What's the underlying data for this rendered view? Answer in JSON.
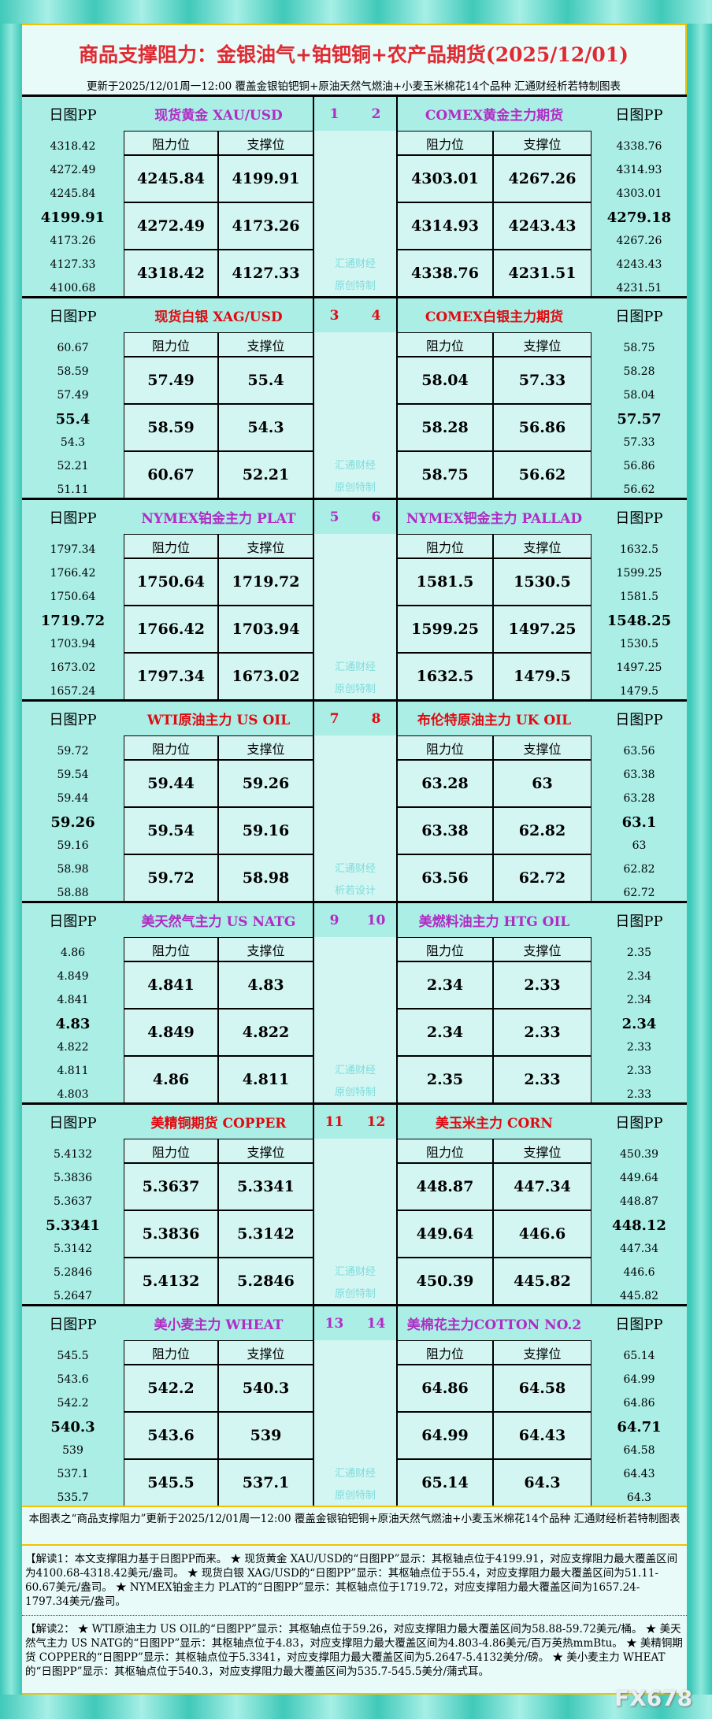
{
  "title": "商品支撑阻力：金银油气+铂钯铜+农产品期货(2025/12/01)",
  "subtitle": "更新于2025/12/01周一12:00  覆盖金银铂钯铜+原油天然气燃油+小麦玉米棉花14个品种  汇通财经析若特制图表",
  "labels": {
    "pp": "日图PP",
    "resistance": "阻力位",
    "support": "支撑位"
  },
  "colors": {
    "purple": "#b02cc4",
    "red": "#e00a10",
    "title": "#e02a32",
    "watermark": "#7edcdc"
  },
  "sections": [
    {
      "numColor": "purple",
      "watermark": [
        "汇通财经",
        "原创特制"
      ],
      "left": {
        "num": "1",
        "name": "现货黄金 XAU/USD",
        "color": "purple",
        "pp": [
          "4318.42",
          "4272.49",
          "4245.84",
          "4199.91",
          "4173.26",
          "4127.33",
          "4100.68"
        ],
        "rows": [
          [
            "4245.84",
            "4199.91"
          ],
          [
            "4272.49",
            "4173.26"
          ],
          [
            "4318.42",
            "4127.33"
          ]
        ]
      },
      "right": {
        "num": "2",
        "name": "COMEX黄金主力期货",
        "color": "purple",
        "pp": [
          "4338.76",
          "4314.93",
          "4303.01",
          "4279.18",
          "4267.26",
          "4243.43",
          "4231.51"
        ],
        "rows": [
          [
            "4303.01",
            "4267.26"
          ],
          [
            "4314.93",
            "4243.43"
          ],
          [
            "4338.76",
            "4231.51"
          ]
        ]
      }
    },
    {
      "numColor": "red",
      "watermark": [
        "汇通财经",
        "原创特制"
      ],
      "left": {
        "num": "3",
        "name": "现货白银 XAG/USD",
        "color": "red",
        "pp": [
          "60.67",
          "58.59",
          "57.49",
          "55.4",
          "54.3",
          "52.21",
          "51.11"
        ],
        "rows": [
          [
            "57.49",
            "55.4"
          ],
          [
            "58.59",
            "54.3"
          ],
          [
            "60.67",
            "52.21"
          ]
        ]
      },
      "right": {
        "num": "4",
        "name": "COMEX白银主力期货",
        "color": "red",
        "pp": [
          "58.75",
          "58.28",
          "58.04",
          "57.57",
          "57.33",
          "56.86",
          "56.62"
        ],
        "rows": [
          [
            "58.04",
            "57.33"
          ],
          [
            "58.28",
            "56.86"
          ],
          [
            "58.75",
            "56.62"
          ]
        ]
      }
    },
    {
      "numColor": "purple",
      "watermark": [
        "汇通财经",
        "原创特制"
      ],
      "left": {
        "num": "5",
        "name": "NYMEX铂金主力 PLAT",
        "color": "purple",
        "pp": [
          "1797.34",
          "1766.42",
          "1750.64",
          "1719.72",
          "1703.94",
          "1673.02",
          "1657.24"
        ],
        "rows": [
          [
            "1750.64",
            "1719.72"
          ],
          [
            "1766.42",
            "1703.94"
          ],
          [
            "1797.34",
            "1673.02"
          ]
        ]
      },
      "right": {
        "num": "6",
        "name": "NYMEX钯金主力 PALLAD",
        "color": "purple",
        "pp": [
          "1632.5",
          "1599.25",
          "1581.5",
          "1548.25",
          "1530.5",
          "1497.25",
          "1479.5"
        ],
        "rows": [
          [
            "1581.5",
            "1530.5"
          ],
          [
            "1599.25",
            "1497.25"
          ],
          [
            "1632.5",
            "1479.5"
          ]
        ]
      }
    },
    {
      "numColor": "red",
      "watermark": [
        "汇通财经",
        "析若设计"
      ],
      "left": {
        "num": "7",
        "name": "WTI原油主力 US OIL",
        "color": "red",
        "pp": [
          "59.72",
          "59.54",
          "59.44",
          "59.26",
          "59.16",
          "58.98",
          "58.88"
        ],
        "rows": [
          [
            "59.44",
            "59.26"
          ],
          [
            "59.54",
            "59.16"
          ],
          [
            "59.72",
            "58.98"
          ]
        ]
      },
      "right": {
        "num": "8",
        "name": "布伦特原油主力 UK OIL",
        "color": "red",
        "pp": [
          "63.56",
          "63.38",
          "63.28",
          "63.1",
          "63",
          "62.82",
          "62.72"
        ],
        "rows": [
          [
            "63.28",
            "63"
          ],
          [
            "63.38",
            "62.82"
          ],
          [
            "63.56",
            "62.72"
          ]
        ]
      }
    },
    {
      "numColor": "purple",
      "watermark": [
        "汇通财经",
        "原创特制"
      ],
      "left": {
        "num": "9",
        "name": "美天然气主力 US NATG",
        "color": "purple",
        "pp": [
          "4.86",
          "4.849",
          "4.841",
          "4.83",
          "4.822",
          "4.811",
          "4.803"
        ],
        "rows": [
          [
            "4.841",
            "4.83"
          ],
          [
            "4.849",
            "4.822"
          ],
          [
            "4.86",
            "4.811"
          ]
        ]
      },
      "right": {
        "num": "10",
        "name": "美燃料油主力 HTG OIL",
        "color": "purple",
        "pp": [
          "2.35",
          "2.34",
          "2.34",
          "2.34",
          "2.33",
          "2.33",
          "2.33"
        ],
        "rows": [
          [
            "2.34",
            "2.33"
          ],
          [
            "2.34",
            "2.33"
          ],
          [
            "2.35",
            "2.33"
          ]
        ]
      }
    },
    {
      "numColor": "red",
      "watermark": [
        "汇通财经",
        "原创特制"
      ],
      "left": {
        "num": "11",
        "name": "美精铜期货 COPPER",
        "color": "red",
        "pp": [
          "5.4132",
          "5.3836",
          "5.3637",
          "5.3341",
          "5.3142",
          "5.2846",
          "5.2647"
        ],
        "rows": [
          [
            "5.3637",
            "5.3341"
          ],
          [
            "5.3836",
            "5.3142"
          ],
          [
            "5.4132",
            "5.2846"
          ]
        ]
      },
      "right": {
        "num": "12",
        "name": "美玉米主力 CORN",
        "color": "red",
        "pp": [
          "450.39",
          "449.64",
          "448.87",
          "448.12",
          "447.34",
          "446.6",
          "445.82"
        ],
        "rows": [
          [
            "448.87",
            "447.34"
          ],
          [
            "449.64",
            "446.6"
          ],
          [
            "450.39",
            "445.82"
          ]
        ]
      }
    },
    {
      "numColor": "purple",
      "watermark": [
        "汇通财经",
        "原创特制"
      ],
      "left": {
        "num": "13",
        "name": "美小麦主力 WHEAT",
        "color": "purple",
        "pp": [
          "545.5",
          "543.6",
          "542.2",
          "540.3",
          "539",
          "537.1",
          "535.7"
        ],
        "rows": [
          [
            "542.2",
            "540.3"
          ],
          [
            "543.6",
            "539"
          ],
          [
            "545.5",
            "537.1"
          ]
        ]
      },
      "right": {
        "num": "14",
        "name": "美棉花主力COTTON NO.2",
        "color": "purple",
        "pp": [
          "65.14",
          "64.99",
          "64.86",
          "64.71",
          "64.58",
          "64.43",
          "64.3"
        ],
        "rows": [
          [
            "64.86",
            "64.58"
          ],
          [
            "64.99",
            "64.43"
          ],
          [
            "65.14",
            "64.3"
          ]
        ]
      }
    }
  ],
  "footer": {
    "note": "本图表之“商品支撑阻力”更新于2025/12/01周一12:00 覆盖金银铂钯铜+原油天然气燃油+小麦玉米棉花14个品种 汇通财经析若特制图表",
    "analysis1": "【解读1：本文支撑阻力基于日图PP而来。 ★ 现货黄金 XAU/USD的“日图PP”显示：其枢轴点位于4199.91，对应支撑阻力最大覆盖区间为4100.68-4318.42美元/盎司。 ★ 现货白银 XAG/USD的“日图PP”显示：其枢轴点位于55.4，对应支撑阻力最大覆盖区间为51.11-60.67美元/盎司。 ★ NYMEX铂金主力 PLAT的“日图PP”显示：其枢轴点位于1719.72，对应支撑阻力最大覆盖区间为1657.24-1797.34美元/盎司。",
    "analysis2": "【解读2： ★ WTI原油主力 US OIL的“日图PP”显示：其枢轴点位于59.26，对应支撑阻力最大覆盖区间为58.88-59.72美元/桶。 ★ 美天然气主力 US NATG的“日图PP”显示：其枢轴点位于4.83，对应支撑阻力最大覆盖区间为4.803-4.86美元/百万英热mmBtu。 ★ 美精铜期货 COPPER的“日图PP”显示：其枢轴点位于5.3341，对应支撑阻力最大覆盖区间为5.2647-5.4132美分/磅。 ★ 美小麦主力 WHEAT的“日图PP”显示：其枢轴点位于540.3，对应支撑阻力最大覆盖区间为535.7-545.5美分/蒲式耳。"
  },
  "logo": "FX678"
}
